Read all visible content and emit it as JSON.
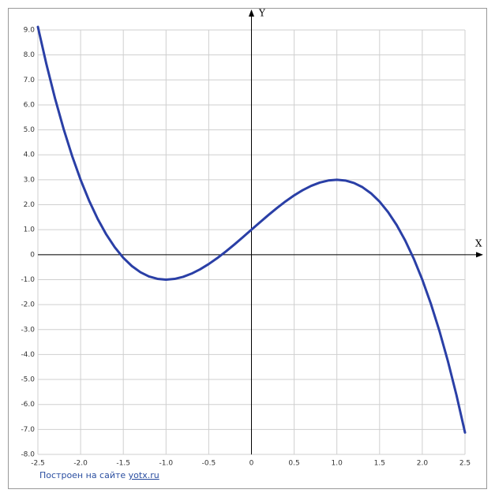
{
  "chart_data": {
    "type": "line",
    "x_label": "X",
    "y_label": "Y",
    "credit": {
      "text": "Построен на сайте",
      "link": "yotx.ru"
    },
    "x": [
      -2.5,
      -2.4,
      -2.3,
      -2.2,
      -2.1,
      -2.0,
      -1.9,
      -1.8,
      -1.7,
      -1.6,
      -1.5,
      -1.4,
      -1.3,
      -1.2,
      -1.1,
      -1.0,
      -0.9,
      -0.8,
      -0.7,
      -0.6,
      -0.5,
      -0.4,
      -0.3,
      -0.2,
      -0.1,
      0,
      0.1,
      0.2,
      0.3,
      0.4,
      0.5,
      0.6,
      0.7,
      0.8,
      0.9,
      1.0,
      1.1,
      1.2,
      1.3,
      1.4,
      1.5,
      1.6,
      1.7,
      1.8,
      1.9,
      2.0,
      2.1,
      2.2,
      2.3,
      2.4,
      2.5
    ],
    "values": [
      9.125,
      7.624,
      6.267,
      5.048,
      3.961,
      3,
      2.159,
      1.432,
      0.813,
      0.296,
      -0.125,
      -0.456,
      -0.703,
      -0.872,
      -0.969,
      -1,
      -0.971,
      -0.888,
      -0.757,
      -0.584,
      -0.375,
      -0.136,
      0.127,
      0.408,
      0.701,
      1,
      1.299,
      1.592,
      1.873,
      2.136,
      2.375,
      2.584,
      2.757,
      2.888,
      2.971,
      3,
      2.969,
      2.872,
      2.703,
      2.456,
      2.125,
      1.704,
      1.187,
      0.568,
      -0.159,
      -1,
      -1.961,
      -3.048,
      -4.267,
      -5.624,
      -7.125
    ],
    "color": "#2a3fa6",
    "xlim": [
      -2.5,
      2.5
    ],
    "ylim": [
      -8,
      9
    ],
    "xticks": [
      -2.5,
      {
        "value": -2,
        "label": "-2.0"
      },
      -1.5,
      {
        "value": -1,
        "label": "-1.0"
      },
      -0.5,
      0,
      0.5,
      {
        "value": 1,
        "label": "1.0"
      },
      1.5,
      {
        "value": 2,
        "label": "2.0"
      },
      2.5
    ],
    "yticks": [
      {
        "value": -8,
        "label": "-8.0"
      },
      {
        "value": -7,
        "label": "-7.0"
      },
      {
        "value": -6,
        "label": "-6.0"
      },
      {
        "value": -5,
        "label": "-5.0"
      },
      {
        "value": -4,
        "label": "-4.0"
      },
      {
        "value": -3,
        "label": "-3.0"
      },
      {
        "value": -2,
        "label": "-2.0"
      },
      {
        "value": -1,
        "label": "-1.0"
      },
      0,
      {
        "value": 1,
        "label": "1.0"
      },
      {
        "value": 2,
        "label": "2.0"
      },
      {
        "value": 3,
        "label": "3.0"
      },
      {
        "value": 4,
        "label": "4.0"
      },
      {
        "value": 5,
        "label": "5.0"
      },
      {
        "value": 6,
        "label": "6.0"
      },
      {
        "value": 7,
        "label": "7.0"
      },
      {
        "value": 8,
        "label": "8.0"
      },
      {
        "value": 9,
        "label": "9.0"
      }
    ],
    "grid": true
  }
}
